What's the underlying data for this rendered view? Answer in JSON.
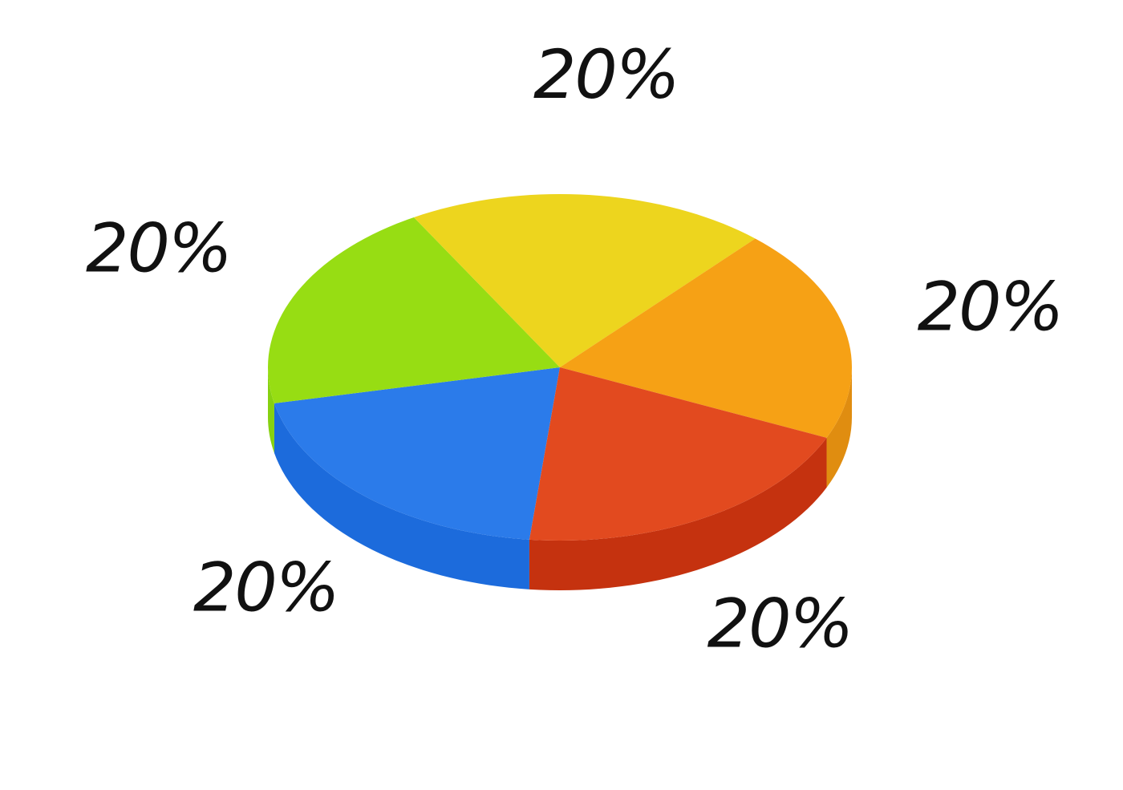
{
  "chart_data": {
    "type": "pie",
    "style": "3d",
    "legend": "none",
    "title": "",
    "slices": [
      {
        "value": 20,
        "label": "20%",
        "color": "#2B7BEA",
        "side_color": "#1C6BDC"
      },
      {
        "value": 20,
        "label": "20%",
        "color": "#97DD13",
        "side_color": "#86D110"
      },
      {
        "value": 20,
        "label": "20%",
        "color": "#EDD51E",
        "side_color": "#D9C21A"
      },
      {
        "value": 20,
        "label": "20%",
        "color": "#F6A115",
        "side_color": "#E08D10"
      },
      {
        "value": 20,
        "label": "20%",
        "color": "#E24A1F",
        "side_color": "#C5320F"
      }
    ]
  }
}
